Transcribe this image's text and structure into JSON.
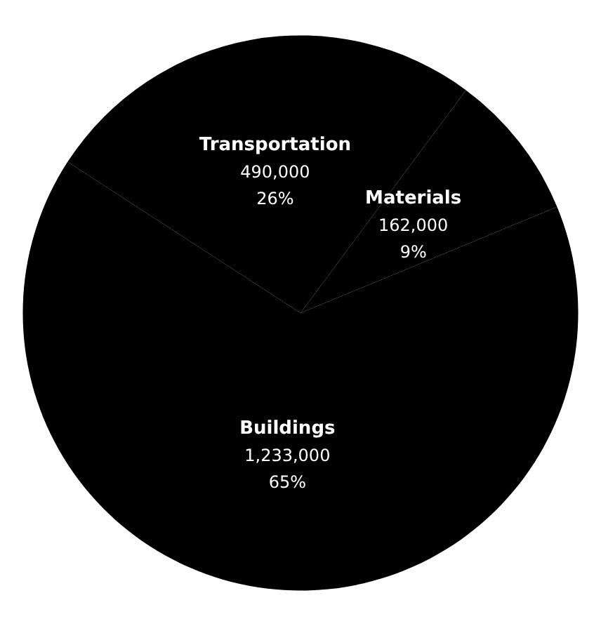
{
  "chart_data": {
    "type": "pie",
    "categories": [
      "Transportation",
      "Materials",
      "Buildings"
    ],
    "values": [
      490000,
      162000,
      1233000
    ],
    "colors": [
      "#000000",
      "#000000",
      "#000000"
    ],
    "value_labels": [
      "490,000\n26%",
      "162,000\n9%",
      "1,233,000\n65%"
    ]
  }
}
